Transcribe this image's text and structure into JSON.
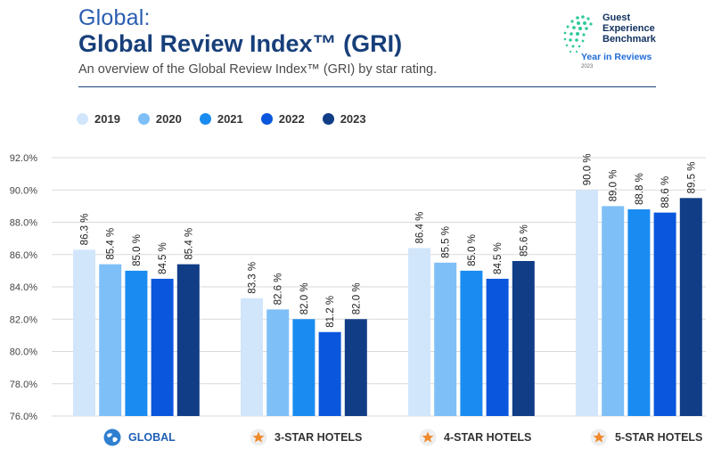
{
  "header": {
    "region": "Global:",
    "title": "Global Review Index™ (GRI)",
    "subtitle": "An overview of the Global Review Index™ (GRI) by star rating."
  },
  "logo": {
    "line1": "Guest",
    "line2": "Experience",
    "line3": "Benchmark",
    "tagline": "Year in Reviews",
    "year": "2023"
  },
  "colors": {
    "2019": "#d2e6fb",
    "2020": "#7fbff7",
    "2021": "#1a8cf1",
    "2022": "#0a57de",
    "2023": "#103d86",
    "star": "#f08a2c",
    "globe": "#2f7fd0"
  },
  "chart_data": {
    "type": "bar",
    "title": "Global Review Index™ (GRI)",
    "categories": [
      "GLOBAL",
      "3-STAR HOTELS",
      "4-STAR HOTELS",
      "5-STAR HOTELS"
    ],
    "category_icons": [
      "globe-icon",
      "star-icon",
      "star-icon",
      "star-icon"
    ],
    "series": [
      {
        "name": "2019",
        "values": [
          86.3,
          83.3,
          86.4,
          90.0
        ],
        "labels": [
          "86.3 %",
          "83.3 %",
          "86.4 %",
          "90.0 %"
        ]
      },
      {
        "name": "2020",
        "values": [
          85.4,
          82.6,
          85.5,
          89.0
        ],
        "labels": [
          "85.4 %",
          "82.6 %",
          "85.5 %",
          "89.0 %"
        ]
      },
      {
        "name": "2021",
        "values": [
          85.0,
          82.0,
          85.0,
          88.8
        ],
        "labels": [
          "85.0 %",
          "82.0 %",
          "85.0 %",
          "88.8 %"
        ]
      },
      {
        "name": "2022",
        "values": [
          84.5,
          81.2,
          84.5,
          88.6
        ],
        "labels": [
          "84.5 %",
          "81.2 %",
          "84.5 %",
          "88.6 %"
        ]
      },
      {
        "name": "2023",
        "values": [
          85.4,
          82.0,
          85.6,
          89.5
        ],
        "labels": [
          "85.4 %",
          "82.0 %",
          "85.6 %",
          "89.5 %"
        ]
      }
    ],
    "ylim": [
      76.0,
      92.0
    ],
    "yticks": [
      76,
      78,
      80,
      82,
      84,
      86,
      88,
      90,
      92
    ],
    "ytick_labels": [
      "76.0%",
      "78.0%",
      "80.0%",
      "82.0%",
      "84.0%",
      "86.0%",
      "88.0%",
      "90.0%",
      "92.0%"
    ],
    "xlabel": "",
    "ylabel": "",
    "grid": true,
    "legend_position": "top-left"
  }
}
